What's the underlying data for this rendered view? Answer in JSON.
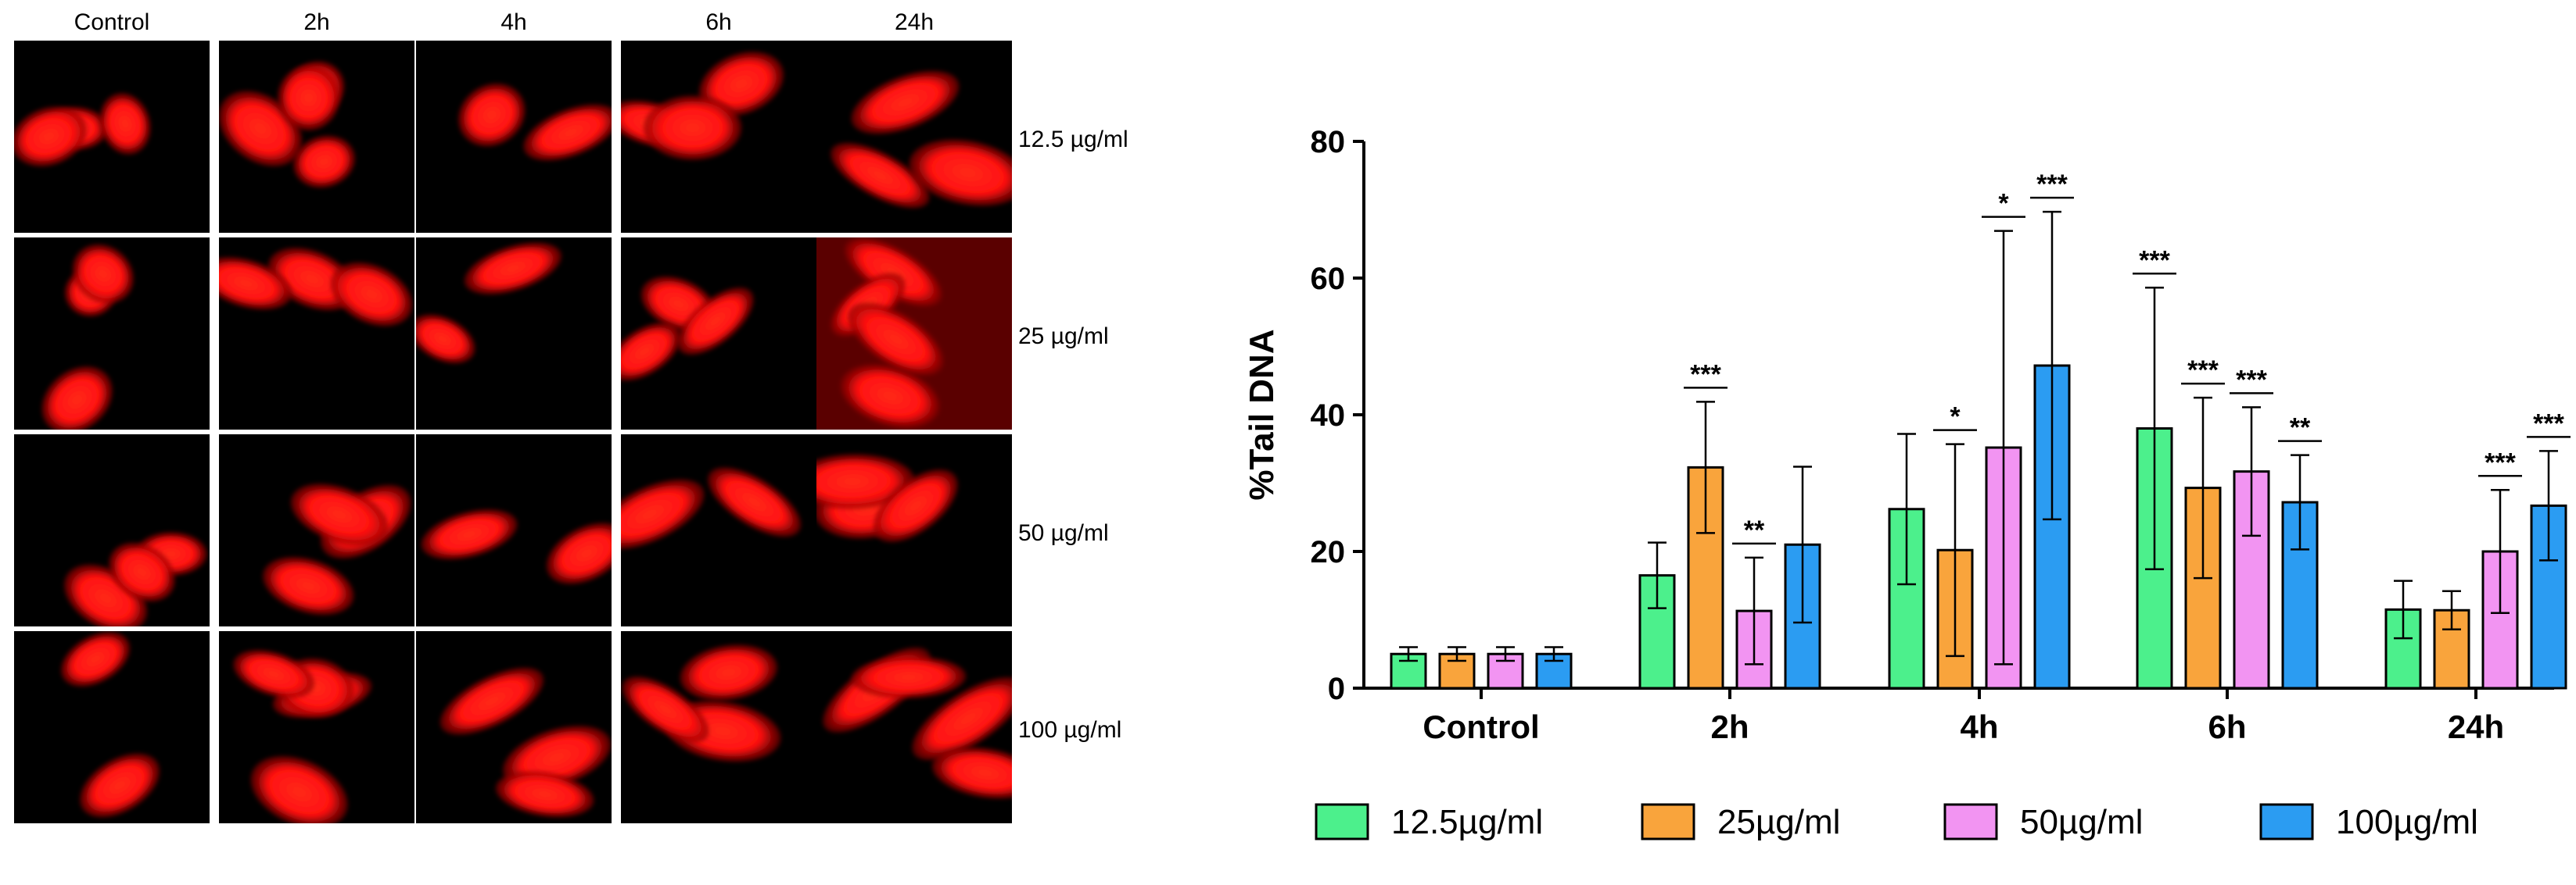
{
  "micrograph_panel": {
    "columns": [
      "Control",
      "2h",
      "4h",
      "6h",
      "24h"
    ],
    "rows": [
      "12.5 µg/ml",
      "25 µg/ml",
      "50 µg/ml",
      "100 µg/ml"
    ],
    "cell_color": "#ff1010",
    "background_color": "#000000"
  },
  "chart_data": {
    "type": "bar",
    "title": "",
    "xlabel": "",
    "ylabel": "%Tail DNA",
    "ylim": [
      0,
      80
    ],
    "yticks": [
      0,
      20,
      40,
      60,
      80
    ],
    "categories": [
      "Control",
      "2h",
      "4h",
      "6h",
      "24h"
    ],
    "legend_position": "bottom",
    "series": [
      {
        "name": "12.5µg/ml",
        "color": "#4cf08c",
        "values": [
          5,
          16.5,
          26.2,
          38,
          11.5
        ],
        "errors": [
          1,
          4.8,
          11,
          20.6,
          4.2
        ],
        "significance": [
          "",
          "",
          "",
          "***",
          ""
        ]
      },
      {
        "name": "25µg/ml",
        "color": "#f9a43c",
        "values": [
          5,
          32.3,
          20.2,
          29.3,
          11.4
        ],
        "errors": [
          1,
          9.6,
          15.5,
          13.2,
          2.8
        ],
        "significance": [
          "",
          "***",
          "*",
          "***",
          ""
        ]
      },
      {
        "name": "50µg/ml",
        "color": "#f294f2",
        "values": [
          5,
          11.3,
          35.2,
          31.7,
          20
        ],
        "errors": [
          1,
          7.8,
          31.7,
          9.4,
          9
        ],
        "significance": [
          "",
          "**",
          "*",
          "***",
          "***"
        ]
      },
      {
        "name": "100µg/ml",
        "color": "#2b9cf2",
        "values": [
          5,
          21,
          47.2,
          27.2,
          26.7
        ],
        "errors": [
          1,
          11.4,
          22.5,
          6.9,
          8
        ],
        "significance": [
          "",
          "",
          "***",
          "**",
          "***"
        ]
      }
    ]
  }
}
